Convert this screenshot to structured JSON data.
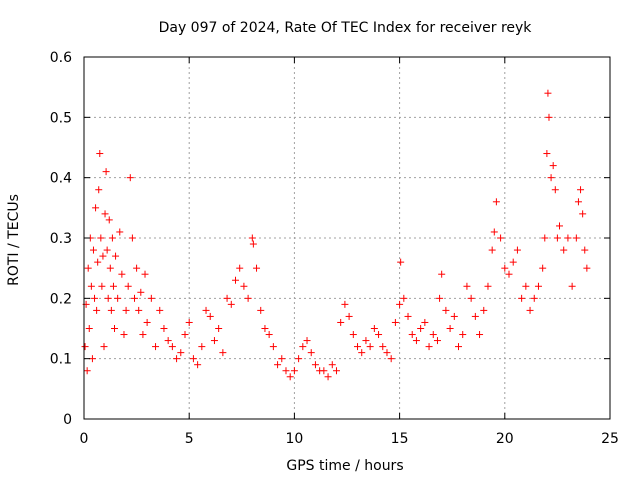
{
  "chart_data": {
    "type": "scatter",
    "title": "Day 097 of 2024, Rate Of TEC Index for receiver reyk",
    "xlabel": "GPS time / hours",
    "ylabel": "ROTI / TECUs",
    "xlim": [
      0,
      25
    ],
    "ylim": [
      0,
      0.6
    ],
    "xticks": [
      0,
      5,
      10,
      15,
      20,
      25
    ],
    "yticks": [
      0,
      0.1,
      0.2,
      0.3,
      0.4,
      0.5,
      0.6
    ],
    "xtick_labels": [
      "0",
      "5",
      "10",
      "15",
      "20",
      "25"
    ],
    "ytick_labels": [
      "0",
      "0.1",
      "0.2",
      "0.3",
      "0.4",
      "0.5",
      "0.6"
    ],
    "grid": true,
    "marker": "+",
    "color": "#ff0000",
    "series": [
      {
        "name": "ROTI",
        "x": [
          0.05,
          0.1,
          0.15,
          0.2,
          0.25,
          0.3,
          0.35,
          0.4,
          0.45,
          0.5,
          0.55,
          0.6,
          0.65,
          0.7,
          0.75,
          0.8,
          0.85,
          0.9,
          0.95,
          1.0,
          1.05,
          1.1,
          1.15,
          1.2,
          1.25,
          1.3,
          1.35,
          1.4,
          1.45,
          1.5,
          1.6,
          1.7,
          1.8,
          1.9,
          2.0,
          2.1,
          2.2,
          2.3,
          2.4,
          2.5,
          2.6,
          2.7,
          2.8,
          2.9,
          3.0,
          3.2,
          3.4,
          3.6,
          3.8,
          4.0,
          4.2,
          4.4,
          4.6,
          4.8,
          5.0,
          5.2,
          5.4,
          5.6,
          5.8,
          6.0,
          6.2,
          6.4,
          6.6,
          6.8,
          7.0,
          7.2,
          7.4,
          7.6,
          7.8,
          8.0,
          8.05,
          8.2,
          8.4,
          8.6,
          8.8,
          9.0,
          9.2,
          9.4,
          9.6,
          9.8,
          10.0,
          10.2,
          10.4,
          10.6,
          10.8,
          11.0,
          11.2,
          11.4,
          11.6,
          11.8,
          12.0,
          12.2,
          12.4,
          12.6,
          12.8,
          13.0,
          13.2,
          13.4,
          13.6,
          13.8,
          14.0,
          14.2,
          14.4,
          14.6,
          14.8,
          15.0,
          15.05,
          15.2,
          15.4,
          15.6,
          15.8,
          16.0,
          16.2,
          16.4,
          16.6,
          16.8,
          16.9,
          17.0,
          17.2,
          17.4,
          17.6,
          17.8,
          18.0,
          18.2,
          18.4,
          18.6,
          18.8,
          19.0,
          19.2,
          19.4,
          19.5,
          19.6,
          19.8,
          20.0,
          20.2,
          20.4,
          20.6,
          20.8,
          21.0,
          21.2,
          21.4,
          21.6,
          21.8,
          21.9,
          22.0,
          22.05,
          22.1,
          22.2,
          22.3,
          22.4,
          22.5,
          22.6,
          22.8,
          23.0,
          23.2,
          23.4,
          23.5,
          23.6,
          23.7,
          23.8,
          23.9
        ],
        "y": [
          0.12,
          0.19,
          0.08,
          0.25,
          0.15,
          0.3,
          0.22,
          0.1,
          0.28,
          0.2,
          0.35,
          0.18,
          0.26,
          0.38,
          0.44,
          0.3,
          0.22,
          0.27,
          0.12,
          0.34,
          0.41,
          0.28,
          0.2,
          0.33,
          0.25,
          0.18,
          0.3,
          0.22,
          0.15,
          0.27,
          0.2,
          0.31,
          0.24,
          0.14,
          0.18,
          0.22,
          0.4,
          0.3,
          0.2,
          0.25,
          0.18,
          0.21,
          0.14,
          0.24,
          0.16,
          0.2,
          0.12,
          0.18,
          0.15,
          0.13,
          0.12,
          0.1,
          0.11,
          0.14,
          0.16,
          0.1,
          0.09,
          0.12,
          0.18,
          0.17,
          0.13,
          0.15,
          0.11,
          0.2,
          0.19,
          0.23,
          0.25,
          0.22,
          0.2,
          0.3,
          0.29,
          0.25,
          0.18,
          0.15,
          0.14,
          0.12,
          0.09,
          0.1,
          0.08,
          0.07,
          0.08,
          0.1,
          0.12,
          0.13,
          0.11,
          0.09,
          0.08,
          0.08,
          0.07,
          0.09,
          0.08,
          0.16,
          0.19,
          0.17,
          0.14,
          0.12,
          0.11,
          0.13,
          0.12,
          0.15,
          0.14,
          0.12,
          0.11,
          0.1,
          0.16,
          0.19,
          0.26,
          0.2,
          0.17,
          0.14,
          0.13,
          0.15,
          0.16,
          0.12,
          0.14,
          0.13,
          0.2,
          0.24,
          0.18,
          0.15,
          0.17,
          0.12,
          0.14,
          0.22,
          0.2,
          0.17,
          0.14,
          0.18,
          0.22,
          0.28,
          0.31,
          0.36,
          0.3,
          0.25,
          0.24,
          0.26,
          0.28,
          0.2,
          0.22,
          0.18,
          0.2,
          0.22,
          0.25,
          0.3,
          0.44,
          0.54,
          0.5,
          0.4,
          0.42,
          0.38,
          0.3,
          0.32,
          0.28,
          0.3,
          0.22,
          0.3,
          0.36,
          0.38,
          0.34,
          0.28,
          0.25
        ]
      }
    ]
  }
}
